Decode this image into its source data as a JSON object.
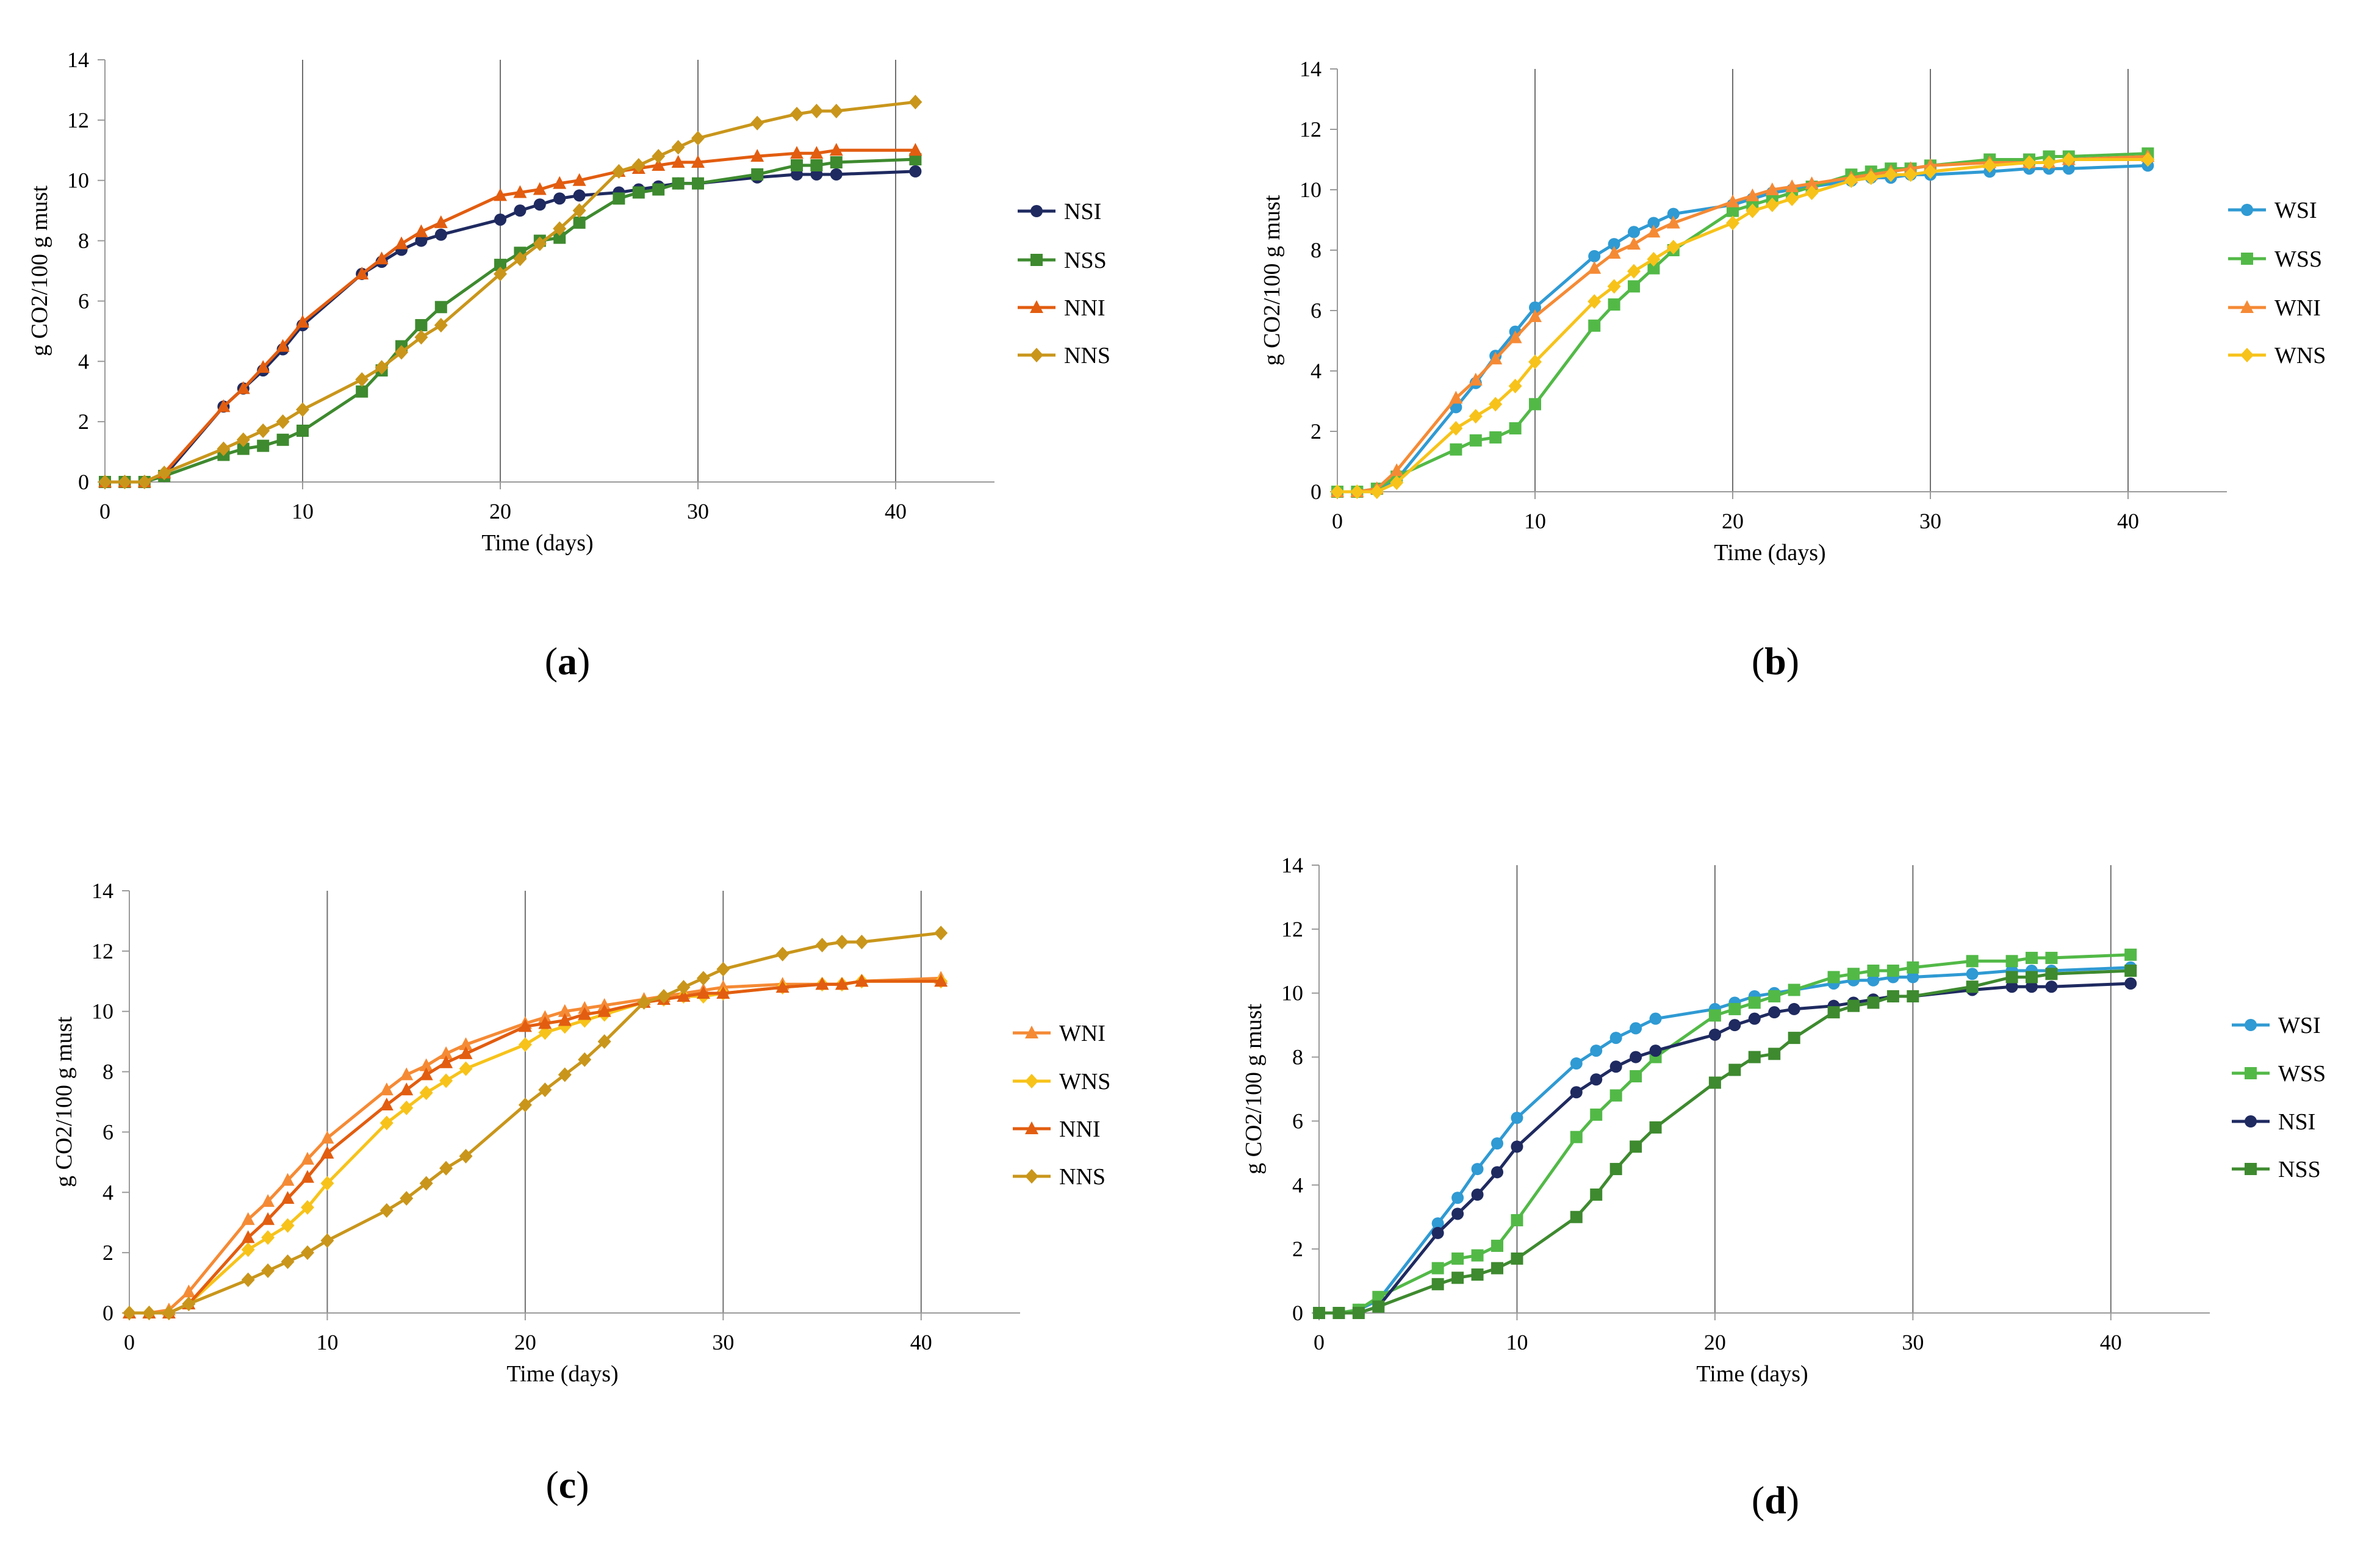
{
  "colors": {
    "NSI": "#1f2a60",
    "NSS": "#3e8a2f",
    "NNI": "#e25d10",
    "NNS": "#c9961b",
    "WSI": "#2f9ad3",
    "WSS": "#52b947",
    "WNI": "#f58a35",
    "WNS": "#f7c31a",
    "axis": "#9a9a9a",
    "vgrid": "#707070"
  },
  "chart_data": [
    {
      "type": "line",
      "panel_label": "a",
      "xlabel": "Time (days)",
      "ylabel": "g CO2/100 g must",
      "xlim": [
        0,
        45
      ],
      "ylim": [
        0,
        14
      ],
      "xticks": [
        0,
        10,
        20,
        30,
        40
      ],
      "yticks": [
        0,
        2,
        4,
        6,
        8,
        10,
        12,
        14
      ],
      "grid": "vertical",
      "legend_position": "right",
      "series": [
        {
          "name": "NSI",
          "marker": "circle",
          "x": [
            0,
            1,
            2,
            3,
            6,
            7,
            8,
            9,
            10,
            13,
            14,
            15,
            16,
            17,
            20,
            21,
            22,
            23,
            24,
            26,
            27,
            28,
            29,
            30,
            33,
            35,
            36,
            37,
            41
          ],
          "y": [
            0,
            0,
            0,
            0.2,
            2.5,
            3.1,
            3.7,
            4.4,
            5.2,
            6.9,
            7.3,
            7.7,
            8.0,
            8.2,
            8.7,
            9.0,
            9.2,
            9.4,
            9.5,
            9.6,
            9.7,
            9.8,
            9.9,
            9.9,
            10.1,
            10.2,
            10.2,
            10.2,
            10.3
          ]
        },
        {
          "name": "NSS",
          "marker": "square",
          "x": [
            0,
            1,
            2,
            3,
            6,
            7,
            8,
            9,
            10,
            13,
            14,
            15,
            16,
            17,
            20,
            21,
            22,
            23,
            24,
            26,
            27,
            28,
            29,
            30,
            33,
            35,
            36,
            37,
            41
          ],
          "y": [
            0,
            0,
            0,
            0.2,
            0.9,
            1.1,
            1.2,
            1.4,
            1.7,
            3.0,
            3.7,
            4.5,
            5.2,
            5.8,
            7.2,
            7.6,
            8.0,
            8.1,
            8.6,
            9.4,
            9.6,
            9.7,
            9.9,
            9.9,
            10.2,
            10.5,
            10.5,
            10.6,
            10.7
          ]
        },
        {
          "name": "NNI",
          "marker": "triangle",
          "x": [
            0,
            1,
            2,
            3,
            6,
            7,
            8,
            9,
            10,
            13,
            14,
            15,
            16,
            17,
            20,
            21,
            22,
            23,
            24,
            26,
            27,
            28,
            29,
            30,
            33,
            35,
            36,
            37,
            41
          ],
          "y": [
            0,
            0,
            0,
            0.3,
            2.5,
            3.1,
            3.8,
            4.5,
            5.3,
            6.9,
            7.4,
            7.9,
            8.3,
            8.6,
            9.5,
            9.6,
            9.7,
            9.9,
            10.0,
            10.3,
            10.4,
            10.5,
            10.6,
            10.6,
            10.8,
            10.9,
            10.9,
            11.0,
            11.0
          ]
        },
        {
          "name": "NNS",
          "marker": "diamond",
          "x": [
            0,
            1,
            2,
            3,
            6,
            7,
            8,
            9,
            10,
            13,
            14,
            15,
            16,
            17,
            20,
            21,
            22,
            23,
            24,
            26,
            27,
            28,
            29,
            30,
            33,
            35,
            36,
            37,
            41
          ],
          "y": [
            0,
            0,
            0,
            0.3,
            1.1,
            1.4,
            1.7,
            2.0,
            2.4,
            3.4,
            3.8,
            4.3,
            4.8,
            5.2,
            6.9,
            7.4,
            7.9,
            8.4,
            9.0,
            10.3,
            10.5,
            10.8,
            11.1,
            11.4,
            11.9,
            12.2,
            12.3,
            12.3,
            12.6
          ]
        }
      ]
    },
    {
      "type": "line",
      "panel_label": "b",
      "xlabel": "Time (days)",
      "ylabel": "g CO2/100 g must",
      "xlim": [
        0,
        45
      ],
      "ylim": [
        0,
        14
      ],
      "xticks": [
        0,
        10,
        20,
        30,
        40
      ],
      "yticks": [
        0,
        2,
        4,
        6,
        8,
        10,
        12,
        14
      ],
      "grid": "vertical",
      "legend_position": "right",
      "series": [
        {
          "name": "WSI",
          "marker": "circle",
          "x": [
            0,
            1,
            2,
            3,
            6,
            7,
            8,
            9,
            10,
            13,
            14,
            15,
            16,
            17,
            20,
            21,
            22,
            23,
            24,
            26,
            27,
            28,
            29,
            30,
            33,
            35,
            36,
            37,
            41
          ],
          "y": [
            0,
            0,
            0.1,
            0.4,
            2.8,
            3.6,
            4.5,
            5.3,
            6.1,
            7.8,
            8.2,
            8.6,
            8.9,
            9.2,
            9.5,
            9.7,
            9.9,
            10.0,
            10.1,
            10.3,
            10.4,
            10.4,
            10.5,
            10.5,
            10.6,
            10.7,
            10.7,
            10.7,
            10.8
          ]
        },
        {
          "name": "WSS",
          "marker": "square",
          "x": [
            0,
            1,
            2,
            3,
            6,
            7,
            8,
            9,
            10,
            13,
            14,
            15,
            16,
            17,
            20,
            21,
            22,
            23,
            24,
            26,
            27,
            28,
            29,
            30,
            33,
            35,
            36,
            37,
            41
          ],
          "y": [
            0,
            0,
            0.1,
            0.5,
            1.4,
            1.7,
            1.8,
            2.1,
            2.9,
            5.5,
            6.2,
            6.8,
            7.4,
            8.0,
            9.3,
            9.5,
            9.7,
            9.9,
            10.1,
            10.5,
            10.6,
            10.7,
            10.7,
            10.8,
            11.0,
            11.0,
            11.1,
            11.1,
            11.2
          ]
        },
        {
          "name": "WNI",
          "marker": "triangle",
          "x": [
            0,
            1,
            2,
            3,
            6,
            7,
            8,
            9,
            10,
            13,
            14,
            15,
            16,
            17,
            20,
            21,
            22,
            23,
            24,
            26,
            27,
            28,
            29,
            30,
            33,
            35,
            36,
            37,
            41
          ],
          "y": [
            0,
            0,
            0.1,
            0.7,
            3.1,
            3.7,
            4.4,
            5.1,
            5.8,
            7.4,
            7.9,
            8.2,
            8.6,
            8.9,
            9.6,
            9.8,
            10.0,
            10.1,
            10.2,
            10.4,
            10.5,
            10.6,
            10.7,
            10.8,
            10.9,
            10.9,
            10.9,
            11.0,
            11.1
          ]
        },
        {
          "name": "WNS",
          "marker": "diamond",
          "x": [
            0,
            1,
            2,
            3,
            6,
            7,
            8,
            9,
            10,
            13,
            14,
            15,
            16,
            17,
            20,
            21,
            22,
            23,
            24,
            26,
            27,
            28,
            29,
            30,
            33,
            35,
            36,
            37,
            41
          ],
          "y": [
            0,
            0,
            0,
            0.3,
            2.1,
            2.5,
            2.9,
            3.5,
            4.3,
            6.3,
            6.8,
            7.3,
            7.7,
            8.1,
            8.9,
            9.3,
            9.5,
            9.7,
            9.9,
            10.3,
            10.4,
            10.5,
            10.5,
            10.6,
            10.8,
            10.9,
            10.9,
            11.0,
            11.0
          ]
        }
      ]
    },
    {
      "type": "line",
      "panel_label": "c",
      "xlabel": "Time (days)",
      "ylabel": "g CO2/100 g must",
      "xlim": [
        0,
        45
      ],
      "ylim": [
        0,
        14
      ],
      "xticks": [
        0,
        10,
        20,
        30,
        40
      ],
      "yticks": [
        0,
        2,
        4,
        6,
        8,
        10,
        12,
        14
      ],
      "grid": "vertical",
      "legend_position": "right",
      "series": [
        {
          "name": "WNI",
          "marker": "triangle",
          "x": [
            0,
            1,
            2,
            3,
            6,
            7,
            8,
            9,
            10,
            13,
            14,
            15,
            16,
            17,
            20,
            21,
            22,
            23,
            24,
            26,
            27,
            28,
            29,
            30,
            33,
            35,
            36,
            37,
            41
          ],
          "y": [
            0,
            0,
            0.1,
            0.7,
            3.1,
            3.7,
            4.4,
            5.1,
            5.8,
            7.4,
            7.9,
            8.2,
            8.6,
            8.9,
            9.6,
            9.8,
            10.0,
            10.1,
            10.2,
            10.4,
            10.5,
            10.6,
            10.7,
            10.8,
            10.9,
            10.9,
            10.9,
            11.0,
            11.1
          ]
        },
        {
          "name": "WNS",
          "marker": "diamond",
          "x": [
            0,
            1,
            2,
            3,
            6,
            7,
            8,
            9,
            10,
            13,
            14,
            15,
            16,
            17,
            20,
            21,
            22,
            23,
            24,
            26,
            27,
            28,
            29,
            30,
            33,
            35,
            36,
            37,
            41
          ],
          "y": [
            0,
            0,
            0,
            0.3,
            2.1,
            2.5,
            2.9,
            3.5,
            4.3,
            6.3,
            6.8,
            7.3,
            7.7,
            8.1,
            8.9,
            9.3,
            9.5,
            9.7,
            9.9,
            10.3,
            10.4,
            10.5,
            10.5,
            10.6,
            10.8,
            10.9,
            10.9,
            11.0,
            11.0
          ]
        },
        {
          "name": "NNI",
          "marker": "triangle",
          "x": [
            0,
            1,
            2,
            3,
            6,
            7,
            8,
            9,
            10,
            13,
            14,
            15,
            16,
            17,
            20,
            21,
            22,
            23,
            24,
            26,
            27,
            28,
            29,
            30,
            33,
            35,
            36,
            37,
            41
          ],
          "y": [
            0,
            0,
            0,
            0.3,
            2.5,
            3.1,
            3.8,
            4.5,
            5.3,
            6.9,
            7.4,
            7.9,
            8.3,
            8.6,
            9.5,
            9.6,
            9.7,
            9.9,
            10.0,
            10.3,
            10.4,
            10.5,
            10.6,
            10.6,
            10.8,
            10.9,
            10.9,
            11.0,
            11.0
          ]
        },
        {
          "name": "NNS",
          "marker": "diamond",
          "x": [
            0,
            1,
            2,
            3,
            6,
            7,
            8,
            9,
            10,
            13,
            14,
            15,
            16,
            17,
            20,
            21,
            22,
            23,
            24,
            26,
            27,
            28,
            29,
            30,
            33,
            35,
            36,
            37,
            41
          ],
          "y": [
            0,
            0,
            0,
            0.3,
            1.1,
            1.4,
            1.7,
            2.0,
            2.4,
            3.4,
            3.8,
            4.3,
            4.8,
            5.2,
            6.9,
            7.4,
            7.9,
            8.4,
            9.0,
            10.3,
            10.5,
            10.8,
            11.1,
            11.4,
            11.9,
            12.2,
            12.3,
            12.3,
            12.6
          ]
        }
      ]
    },
    {
      "type": "line",
      "panel_label": "d",
      "xlabel": "Time (days)",
      "ylabel": "g CO2/100 g must",
      "xlim": [
        0,
        45
      ],
      "ylim": [
        0,
        14
      ],
      "xticks": [
        0,
        10,
        20,
        30,
        40
      ],
      "yticks": [
        0,
        2,
        4,
        6,
        8,
        10,
        12,
        14
      ],
      "grid": "vertical",
      "legend_position": "right",
      "series": [
        {
          "name": "WSI",
          "marker": "circle",
          "x": [
            0,
            1,
            2,
            3,
            6,
            7,
            8,
            9,
            10,
            13,
            14,
            15,
            16,
            17,
            20,
            21,
            22,
            23,
            24,
            26,
            27,
            28,
            29,
            30,
            33,
            35,
            36,
            37,
            41
          ],
          "y": [
            0,
            0,
            0.1,
            0.4,
            2.8,
            3.6,
            4.5,
            5.3,
            6.1,
            7.8,
            8.2,
            8.6,
            8.9,
            9.2,
            9.5,
            9.7,
            9.9,
            10.0,
            10.1,
            10.3,
            10.4,
            10.4,
            10.5,
            10.5,
            10.6,
            10.7,
            10.7,
            10.7,
            10.8
          ]
        },
        {
          "name": "WSS",
          "marker": "square",
          "x": [
            0,
            1,
            2,
            3,
            6,
            7,
            8,
            9,
            10,
            13,
            14,
            15,
            16,
            17,
            20,
            21,
            22,
            23,
            24,
            26,
            27,
            28,
            29,
            30,
            33,
            35,
            36,
            37,
            41
          ],
          "y": [
            0,
            0,
            0.1,
            0.5,
            1.4,
            1.7,
            1.8,
            2.1,
            2.9,
            5.5,
            6.2,
            6.8,
            7.4,
            8.0,
            9.3,
            9.5,
            9.7,
            9.9,
            10.1,
            10.5,
            10.6,
            10.7,
            10.7,
            10.8,
            11.0,
            11.0,
            11.1,
            11.1,
            11.2
          ]
        },
        {
          "name": "NSI",
          "marker": "circle",
          "x": [
            0,
            1,
            2,
            3,
            6,
            7,
            8,
            9,
            10,
            13,
            14,
            15,
            16,
            17,
            20,
            21,
            22,
            23,
            24,
            26,
            27,
            28,
            29,
            30,
            33,
            35,
            36,
            37,
            41
          ],
          "y": [
            0,
            0,
            0,
            0.2,
            2.5,
            3.1,
            3.7,
            4.4,
            5.2,
            6.9,
            7.3,
            7.7,
            8.0,
            8.2,
            8.7,
            9.0,
            9.2,
            9.4,
            9.5,
            9.6,
            9.7,
            9.8,
            9.9,
            9.9,
            10.1,
            10.2,
            10.2,
            10.2,
            10.3
          ]
        },
        {
          "name": "NSS",
          "marker": "square",
          "x": [
            0,
            1,
            2,
            3,
            6,
            7,
            8,
            9,
            10,
            13,
            14,
            15,
            16,
            17,
            20,
            21,
            22,
            23,
            24,
            26,
            27,
            28,
            29,
            30,
            33,
            35,
            36,
            37,
            41
          ],
          "y": [
            0,
            0,
            0,
            0.2,
            0.9,
            1.1,
            1.2,
            1.4,
            1.7,
            3.0,
            3.7,
            4.5,
            5.2,
            5.8,
            7.2,
            7.6,
            8.0,
            8.1,
            8.6,
            9.4,
            9.6,
            9.7,
            9.9,
            9.9,
            10.2,
            10.5,
            10.5,
            10.6,
            10.7
          ]
        }
      ]
    }
  ]
}
